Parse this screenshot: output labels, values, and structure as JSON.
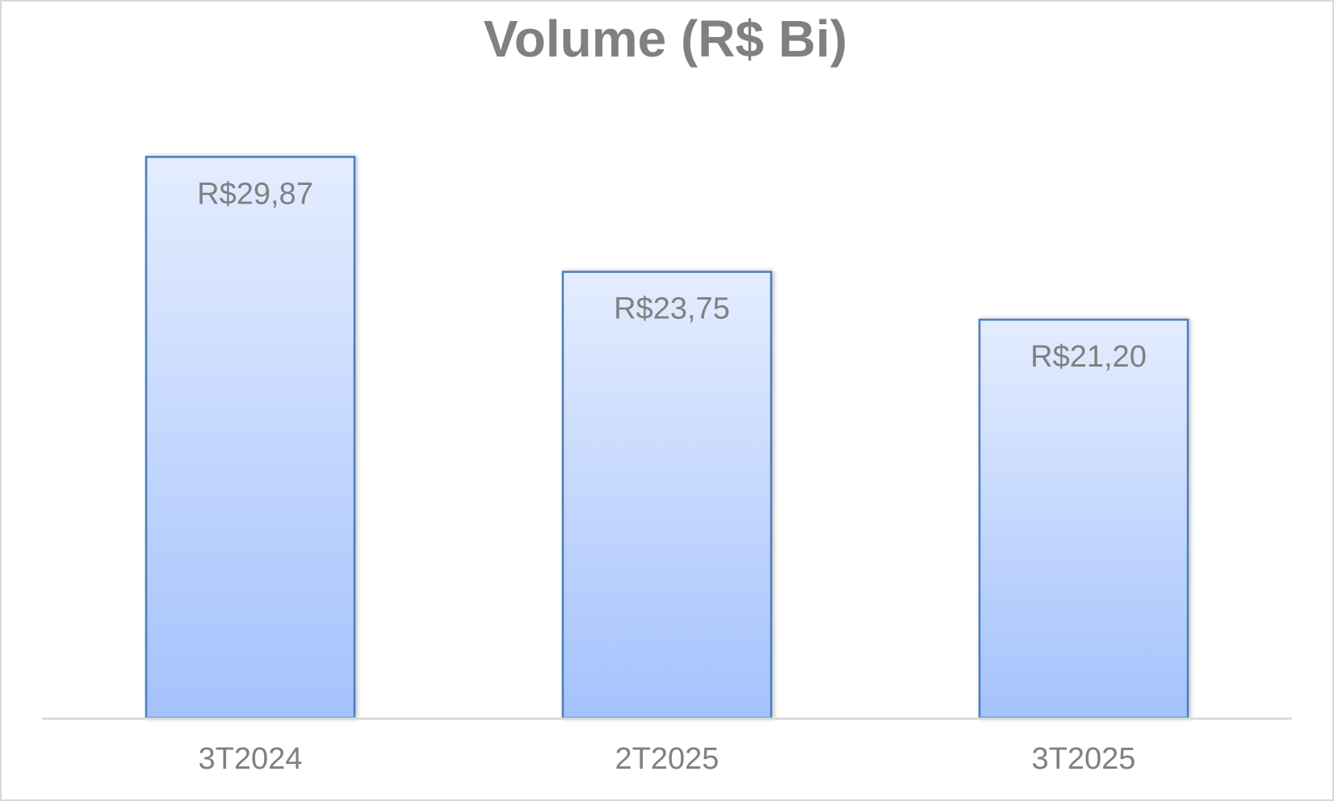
{
  "chart_data": {
    "type": "bar",
    "title": "Volume (R$ Bi)",
    "categories": [
      "3T2024",
      "2T2025",
      "3T2025"
    ],
    "values": [
      29.87,
      23.75,
      21.2
    ],
    "data_labels": [
      "R$29,87",
      "R$23,75",
      "R$21,20"
    ],
    "xlabel": "",
    "ylabel": "",
    "ylim": [
      0,
      35
    ],
    "grid": false,
    "legend": "none",
    "colors": {
      "bar_fill_top": "#e4edff",
      "bar_fill_bottom": "#a4c2fc",
      "bar_border": "#4a7ebb",
      "axis": "#d9d9d9",
      "text": "#808080"
    }
  }
}
